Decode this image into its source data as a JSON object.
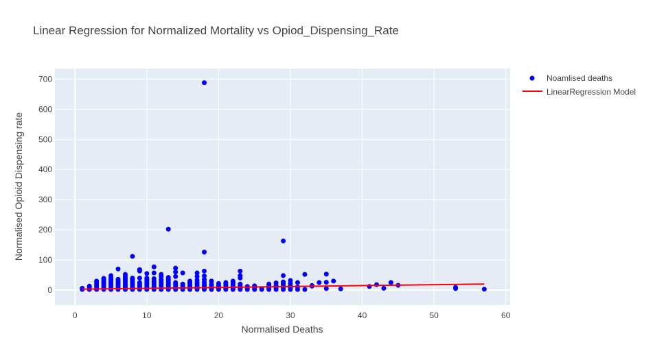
{
  "chart_data": {
    "type": "scatter",
    "title": "Linear Regression for Normalized Mortality vs Opiod_Dispensing_Rate",
    "xlabel": "Normalised Deaths",
    "ylabel": "Normalised Opioid Dispensing rate",
    "xlim": [
      -2.8,
      60.6
    ],
    "ylim": [
      -50,
      735
    ],
    "xticks": [
      0,
      10,
      20,
      30,
      40,
      50,
      60
    ],
    "yticks": [
      0,
      100,
      200,
      300,
      400,
      500,
      600,
      700
    ],
    "grid": true,
    "legend_position": "top-right",
    "plot_bg": "#e5ecf6",
    "grid_color": "#ffffff",
    "series": [
      {
        "name": "Noamlised deaths",
        "mode": "markers",
        "color": "#0000ff",
        "points": [
          [
            1,
            2
          ],
          [
            1,
            6
          ],
          [
            2,
            2
          ],
          [
            2,
            5
          ],
          [
            2,
            9
          ],
          [
            2,
            13
          ],
          [
            3,
            2
          ],
          [
            3,
            6
          ],
          [
            3,
            10
          ],
          [
            3,
            15
          ],
          [
            3,
            20
          ],
          [
            3,
            26
          ],
          [
            3,
            30
          ],
          [
            4,
            2
          ],
          [
            4,
            6
          ],
          [
            4,
            10
          ],
          [
            4,
            15
          ],
          [
            4,
            20
          ],
          [
            4,
            25
          ],
          [
            4,
            30
          ],
          [
            4,
            35
          ],
          [
            4,
            39
          ],
          [
            5,
            2
          ],
          [
            5,
            6
          ],
          [
            5,
            10
          ],
          [
            5,
            15
          ],
          [
            5,
            20
          ],
          [
            5,
            25
          ],
          [
            5,
            30
          ],
          [
            5,
            35
          ],
          [
            5,
            41
          ],
          [
            5,
            48
          ],
          [
            6,
            2
          ],
          [
            6,
            6
          ],
          [
            6,
            10
          ],
          [
            6,
            15
          ],
          [
            6,
            20
          ],
          [
            6,
            25
          ],
          [
            6,
            30
          ],
          [
            6,
            36
          ],
          [
            6,
            70
          ],
          [
            7,
            2
          ],
          [
            7,
            6
          ],
          [
            7,
            10
          ],
          [
            7,
            15
          ],
          [
            7,
            20
          ],
          [
            7,
            25
          ],
          [
            7,
            30
          ],
          [
            7,
            35
          ],
          [
            7,
            40
          ],
          [
            7,
            45
          ],
          [
            7,
            52
          ],
          [
            8,
            2
          ],
          [
            8,
            6
          ],
          [
            8,
            10
          ],
          [
            8,
            15
          ],
          [
            8,
            20
          ],
          [
            8,
            25
          ],
          [
            8,
            30
          ],
          [
            8,
            35
          ],
          [
            8,
            40
          ],
          [
            8,
            112
          ],
          [
            9,
            2
          ],
          [
            9,
            6
          ],
          [
            9,
            10
          ],
          [
            9,
            15
          ],
          [
            9,
            20
          ],
          [
            9,
            25
          ],
          [
            9,
            40
          ],
          [
            9,
            63
          ],
          [
            9,
            68
          ],
          [
            10,
            2
          ],
          [
            10,
            6
          ],
          [
            10,
            10
          ],
          [
            10,
            15
          ],
          [
            10,
            20
          ],
          [
            10,
            25
          ],
          [
            10,
            30
          ],
          [
            10,
            35
          ],
          [
            10,
            40
          ],
          [
            10,
            55
          ],
          [
            11,
            2
          ],
          [
            11,
            6
          ],
          [
            11,
            10
          ],
          [
            11,
            15
          ],
          [
            11,
            20
          ],
          [
            11,
            25
          ],
          [
            11,
            30
          ],
          [
            11,
            38
          ],
          [
            11,
            57
          ],
          [
            11,
            77
          ],
          [
            12,
            2
          ],
          [
            12,
            6
          ],
          [
            12,
            10
          ],
          [
            12,
            15
          ],
          [
            12,
            20
          ],
          [
            12,
            25
          ],
          [
            12,
            30
          ],
          [
            12,
            35
          ],
          [
            12,
            45
          ],
          [
            12,
            52
          ],
          [
            13,
            2
          ],
          [
            13,
            6
          ],
          [
            13,
            10
          ],
          [
            13,
            15
          ],
          [
            13,
            20
          ],
          [
            13,
            25
          ],
          [
            13,
            30
          ],
          [
            13,
            35
          ],
          [
            13,
            42
          ],
          [
            13,
            202
          ],
          [
            14,
            2
          ],
          [
            14,
            6
          ],
          [
            14,
            10
          ],
          [
            14,
            15
          ],
          [
            14,
            20
          ],
          [
            14,
            25
          ],
          [
            14,
            45
          ],
          [
            14,
            60
          ],
          [
            14,
            73
          ],
          [
            15,
            2
          ],
          [
            15,
            6
          ],
          [
            15,
            10
          ],
          [
            15,
            15
          ],
          [
            15,
            20
          ],
          [
            15,
            57
          ],
          [
            16,
            2
          ],
          [
            16,
            6
          ],
          [
            16,
            10
          ],
          [
            16,
            15
          ],
          [
            16,
            20
          ],
          [
            16,
            25
          ],
          [
            16,
            30
          ],
          [
            17,
            2
          ],
          [
            17,
            6
          ],
          [
            17,
            10
          ],
          [
            17,
            15
          ],
          [
            17,
            20
          ],
          [
            17,
            25
          ],
          [
            17,
            33
          ],
          [
            17,
            45
          ],
          [
            17,
            57
          ],
          [
            18,
            2
          ],
          [
            18,
            6
          ],
          [
            18,
            10
          ],
          [
            18,
            15
          ],
          [
            18,
            20
          ],
          [
            18,
            26
          ],
          [
            18,
            35
          ],
          [
            18,
            47
          ],
          [
            18,
            63
          ],
          [
            18,
            126
          ],
          [
            18,
            688
          ],
          [
            19,
            2
          ],
          [
            19,
            6
          ],
          [
            19,
            10
          ],
          [
            19,
            15
          ],
          [
            19,
            20
          ],
          [
            19,
            30
          ],
          [
            20,
            2
          ],
          [
            20,
            6
          ],
          [
            20,
            10
          ],
          [
            20,
            15
          ],
          [
            20,
            22
          ],
          [
            21,
            2
          ],
          [
            21,
            6
          ],
          [
            21,
            10
          ],
          [
            21,
            15
          ],
          [
            21,
            20
          ],
          [
            21,
            25
          ],
          [
            22,
            2
          ],
          [
            22,
            6
          ],
          [
            22,
            10
          ],
          [
            22,
            15
          ],
          [
            22,
            20
          ],
          [
            22,
            25
          ],
          [
            22,
            30
          ],
          [
            23,
            2
          ],
          [
            23,
            6
          ],
          [
            23,
            10
          ],
          [
            23,
            15
          ],
          [
            23,
            20
          ],
          [
            23,
            40
          ],
          [
            23,
            48
          ],
          [
            23,
            63
          ],
          [
            24,
            2
          ],
          [
            24,
            6
          ],
          [
            24,
            12
          ],
          [
            25,
            2
          ],
          [
            25,
            6
          ],
          [
            25,
            10
          ],
          [
            25,
            14
          ],
          [
            26,
            2
          ],
          [
            26,
            5
          ],
          [
            27,
            2
          ],
          [
            27,
            6
          ],
          [
            27,
            10
          ],
          [
            27,
            15
          ],
          [
            27,
            20
          ],
          [
            28,
            2
          ],
          [
            28,
            8
          ],
          [
            28,
            15
          ],
          [
            28,
            24
          ],
          [
            29,
            2
          ],
          [
            29,
            8
          ],
          [
            29,
            12
          ],
          [
            29,
            18
          ],
          [
            29,
            22
          ],
          [
            29,
            27
          ],
          [
            29,
            48
          ],
          [
            29,
            163
          ],
          [
            30,
            2
          ],
          [
            30,
            8
          ],
          [
            30,
            14
          ],
          [
            30,
            22
          ],
          [
            30,
            32
          ],
          [
            31,
            2
          ],
          [
            31,
            10
          ],
          [
            31,
            25
          ],
          [
            32,
            2
          ],
          [
            32,
            52
          ],
          [
            33,
            13
          ],
          [
            33,
            15
          ],
          [
            34,
            25
          ],
          [
            35,
            5
          ],
          [
            35,
            26
          ],
          [
            35,
            53
          ],
          [
            36,
            30
          ],
          [
            37,
            4
          ],
          [
            41,
            12
          ],
          [
            42,
            18
          ],
          [
            43,
            6
          ],
          [
            44,
            25
          ],
          [
            45,
            16
          ],
          [
            53,
            5
          ],
          [
            53,
            9
          ],
          [
            57,
            3
          ]
        ]
      },
      {
        "name": "LinearRegression Model",
        "mode": "lines",
        "color": "#ff0000",
        "points": [
          [
            1,
            3
          ],
          [
            57,
            20
          ]
        ]
      }
    ]
  }
}
